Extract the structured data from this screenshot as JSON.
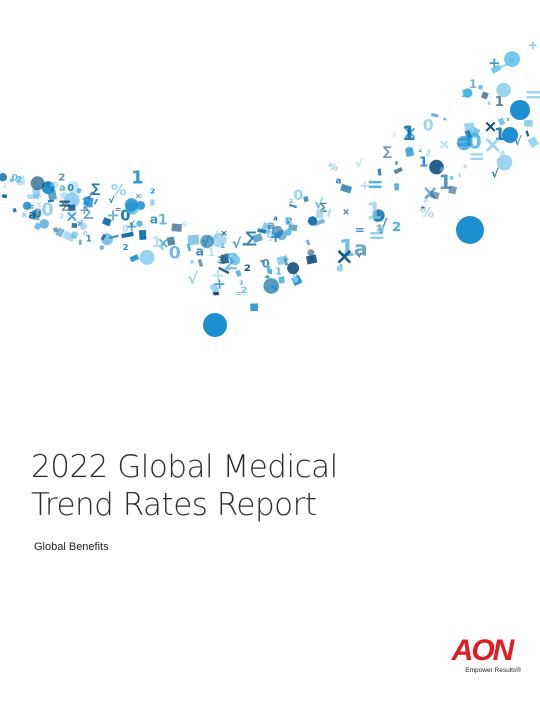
{
  "cover": {
    "title_line1": "2022 Global Medical",
    "title_line2": "Trend Rates Report",
    "subtitle": "Global Benefits"
  },
  "brand": {
    "logo_text": "AON",
    "tagline": "Empower Results®",
    "color": "#e31b23"
  },
  "art": {
    "palette": [
      "#0a6fa8",
      "#1b8fd0",
      "#45b3e6",
      "#8ccdee",
      "#0d4f7e"
    ],
    "glyphs": [
      "0",
      "a",
      "²",
      "+",
      "×",
      "%",
      "1",
      "=",
      "∑",
      "√"
    ]
  }
}
